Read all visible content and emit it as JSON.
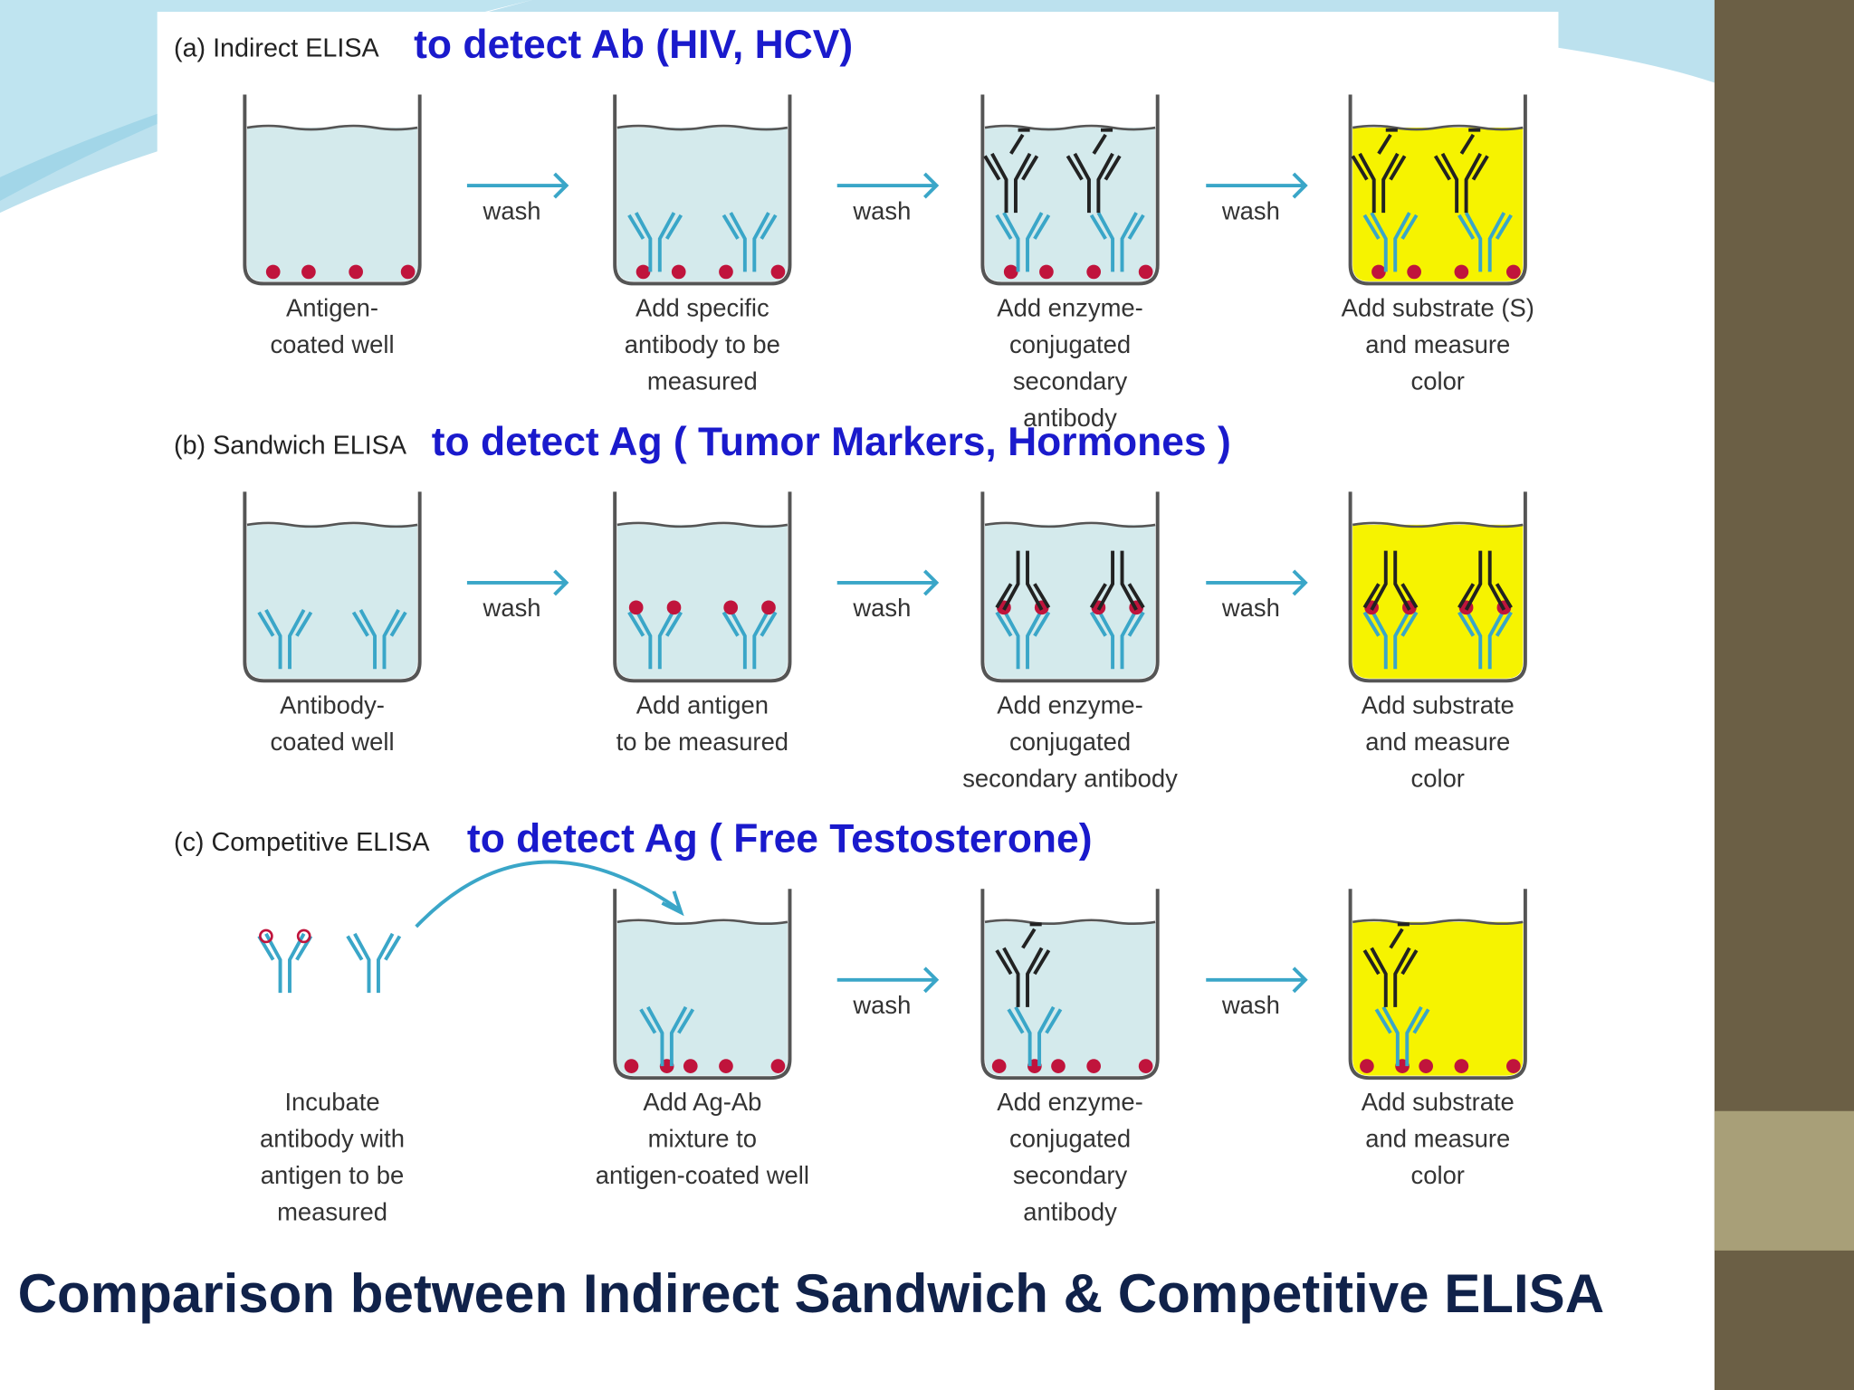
{
  "panels": [
    {
      "label": "(a) Indirect ELISA",
      "purpose": "to detect Ab (HIV, HCV)",
      "steps": [
        [
          "Antigen-",
          "coated well"
        ],
        [
          "Add specific",
          "antibody to be",
          "measured"
        ],
        [
          "Add enzyme-",
          "conjugated",
          "secondary",
          "antibody"
        ],
        [
          "Add substrate (S)",
          "and measure",
          "color"
        ]
      ],
      "wash": [
        "wash",
        "wash",
        "wash"
      ]
    },
    {
      "label": "(b) Sandwich ELISA",
      "purpose": "to detect Ag ( Tumor Markers, Hormones )",
      "steps": [
        [
          "Antibody-",
          "coated well"
        ],
        [
          "Add antigen",
          "to be measured"
        ],
        [
          "Add enzyme-",
          "conjugated",
          "secondary antibody"
        ],
        [
          "Add substrate",
          "and measure",
          "color"
        ]
      ],
      "wash": [
        "wash",
        "wash",
        "wash"
      ]
    },
    {
      "label": "(c) Competitive ELISA",
      "purpose": "to detect Ag ( Free Testosterone)",
      "steps": [
        [
          "Incubate",
          "antibody with",
          "antigen to be",
          "measured"
        ],
        [
          "Add Ag-Ab",
          "mixture to",
          "antigen-coated well"
        ],
        [
          "Add enzyme-",
          "conjugated",
          "secondary",
          "antibody"
        ],
        [
          "Add substrate",
          "and measure",
          "color"
        ]
      ],
      "wash": [
        "wash",
        "wash"
      ]
    }
  ],
  "title": "Comparison between Indirect Sandwich & Competitive ELISA"
}
